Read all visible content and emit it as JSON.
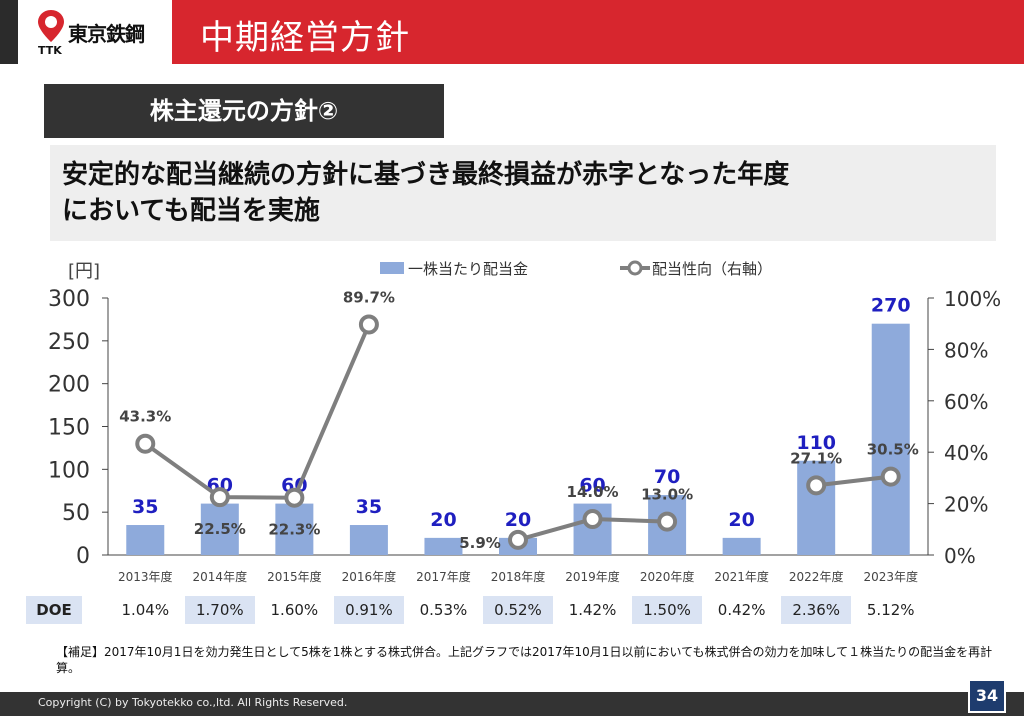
{
  "header": {
    "logo_text": "東京鉄鋼",
    "logo_sub": "TTK",
    "title": "中期経営方針"
  },
  "section": {
    "title": "株主還元の方針②"
  },
  "summary": {
    "line1": "安定的な配当継続の方針に基づき最終損益が赤字となった年度",
    "line2": "においても配当を実施"
  },
  "colors": {
    "bar": "#8eaadb",
    "line": "#7f7f7f",
    "bar_label": "#1f1fc0",
    "doe_alt": "#dae3f3"
  },
  "chart_data": {
    "type": "bar",
    "categories": [
      "2013年度",
      "2014年度",
      "2015年度",
      "2016年度",
      "2017年度",
      "2018年度",
      "2019年度",
      "2020年度",
      "2021年度",
      "2022年度",
      "2023年度"
    ],
    "series": [
      {
        "name": "一株当たり配当金",
        "type": "bar",
        "axis": "left",
        "values": [
          35,
          60,
          60,
          35,
          20,
          20,
          60,
          70,
          20,
          110,
          270
        ],
        "labels": [
          "35",
          "60",
          "60",
          "35",
          "20",
          "20",
          "60",
          "70",
          "20",
          "110",
          "270"
        ]
      },
      {
        "name": "配当性向（右軸）",
        "type": "line",
        "axis": "right",
        "values": [
          43.3,
          22.5,
          22.3,
          89.7,
          null,
          5.9,
          14.0,
          13.0,
          null,
          27.1,
          30.5
        ],
        "labels": [
          "43.3%",
          "22.5%",
          "22.3%",
          "89.7%",
          "",
          "5.9%",
          "14.0%",
          "13.0%",
          "",
          "27.1%",
          "30.5%"
        ]
      }
    ],
    "y_left": {
      "unit": "[円]",
      "ylim": [
        0,
        300
      ],
      "ticks": [
        "0",
        "50",
        "100",
        "150",
        "200",
        "250",
        "300"
      ]
    },
    "y_right": {
      "ylim": [
        0,
        100
      ],
      "ticks": [
        "0%",
        "20%",
        "40%",
        "60%",
        "80%",
        "100%"
      ]
    },
    "legend": "top-center",
    "grid": false
  },
  "doe": {
    "label": "DOE",
    "values": [
      "1.04%",
      "1.70%",
      "1.60%",
      "0.91%",
      "0.53%",
      "0.52%",
      "1.42%",
      "1.50%",
      "0.42%",
      "2.36%",
      "5.12%"
    ]
  },
  "note": "【補足】2017年10月1日を効力発生日として5株を1株とする株式併合。上記グラフでは2017年10月1日以前においても株式併合の効力を加味して１株当たりの配当金を再計算。",
  "footer": {
    "copyright": "Copyright (C) by Tokyotekko co.,ltd. All Rights Reserved.",
    "page": "34"
  }
}
